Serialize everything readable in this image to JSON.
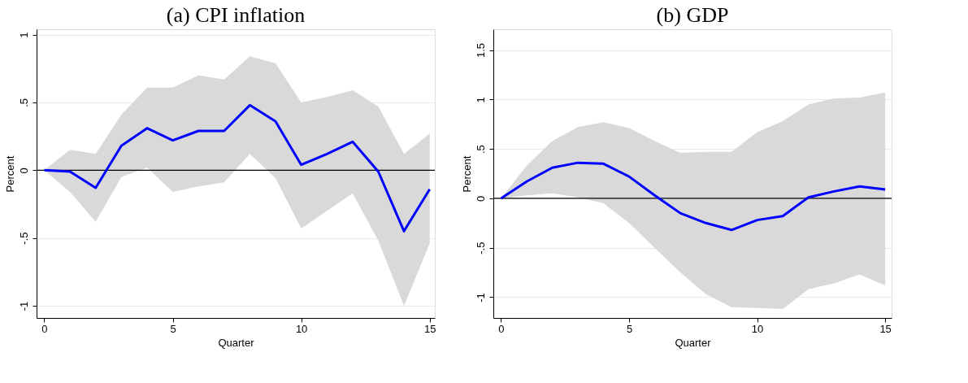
{
  "chart_data": [
    {
      "type": "line",
      "title": "(a)  CPI inflation",
      "xlabel": "Quarter",
      "ylabel": "Percent",
      "x": [
        0,
        1,
        2,
        3,
        4,
        5,
        6,
        7,
        8,
        9,
        10,
        11,
        12,
        13,
        14,
        15
      ],
      "series": [
        {
          "color": "#0000ff",
          "values": [
            0,
            -0.01,
            -0.13,
            0.18,
            0.31,
            0.22,
            0.29,
            0.29,
            0.48,
            0.36,
            0.04,
            0.12,
            0.21,
            -0.01,
            -0.45,
            -0.14
          ],
          "lower": [
            0,
            -0.16,
            -0.38,
            -0.05,
            0.02,
            -0.16,
            -0.12,
            -0.09,
            0.12,
            -0.06,
            -0.43,
            -0.3,
            -0.17,
            -0.52,
            -1.0,
            -0.54
          ],
          "upper": [
            0,
            0.15,
            0.12,
            0.41,
            0.61,
            0.61,
            0.7,
            0.67,
            0.84,
            0.79,
            0.5,
            0.54,
            0.59,
            0.47,
            0.12,
            0.27
          ]
        }
      ],
      "xlim": [
        -0.3,
        15.2
      ],
      "xticks": [
        0,
        5,
        10,
        15
      ],
      "ylim": [
        -1.09,
        1.04
      ],
      "yticks": [
        {
          "value": -1,
          "label": "-1"
        },
        {
          "value": -0.5,
          "label": "-.5"
        },
        {
          "value": 0,
          "label": "0"
        },
        {
          "value": 0.5,
          "label": ".5"
        },
        {
          "value": 1,
          "label": "1"
        }
      ],
      "grid": "y",
      "ref_lines": [
        {
          "axis": "y",
          "value": 0,
          "color": "#000000"
        }
      ]
    },
    {
      "type": "line",
      "title": "(b) GDP",
      "xlabel": "Quarter",
      "ylabel": "Percent",
      "x": [
        0,
        1,
        2,
        3,
        4,
        5,
        6,
        7,
        8,
        9,
        10,
        11,
        12,
        13,
        14,
        15
      ],
      "series": [
        {
          "color": "#0000ff",
          "values": [
            0,
            0.17,
            0.31,
            0.36,
            0.35,
            0.22,
            0.03,
            -0.15,
            -0.25,
            -0.32,
            -0.22,
            -0.18,
            0.01,
            0.07,
            0.12,
            0.09
          ],
          "lower": [
            0,
            0.03,
            0.05,
            0.01,
            -0.05,
            -0.25,
            -0.5,
            -0.75,
            -0.97,
            -1.1,
            -1.11,
            -1.12,
            -0.92,
            -0.86,
            -0.77,
            -0.88
          ],
          "upper": [
            0,
            0.33,
            0.58,
            0.72,
            0.77,
            0.71,
            0.58,
            0.46,
            0.47,
            0.47,
            0.67,
            0.78,
            0.95,
            1.01,
            1.02,
            1.07
          ]
        }
      ],
      "xlim": [
        -0.3,
        15.25
      ],
      "xticks": [
        0,
        5,
        10,
        15
      ],
      "ylim": [
        -1.21,
        1.71
      ],
      "yticks": [
        {
          "value": -1,
          "label": "-1"
        },
        {
          "value": -0.5,
          "label": "-.5"
        },
        {
          "value": 0,
          "label": "0"
        },
        {
          "value": 0.5,
          "label": ".5"
        },
        {
          "value": 1,
          "label": "1"
        },
        {
          "value": 1.5,
          "label": "1.5"
        }
      ],
      "grid": "y",
      "ref_lines": [
        {
          "axis": "y",
          "value": 0,
          "color": "#000000"
        }
      ]
    }
  ]
}
